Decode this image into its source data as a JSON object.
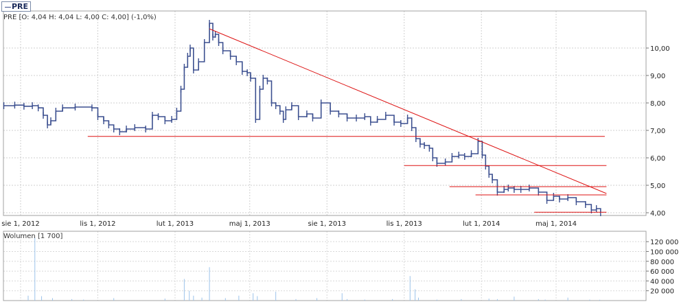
{
  "legend": {
    "symbol": "PRE"
  },
  "ohlc_text": "PRE [O: 4,04  H: 4,04  L: 4,00  C: 4,00] (-1,0%)",
  "volume_label": "Wolumen [1 700]",
  "colors": {
    "price": "#3b4f8f",
    "trend": "#dd1111",
    "volume": "#9cc3ea",
    "grid": "#cfcfcf",
    "grid_vol": "#d8d8d8"
  },
  "chart_data": [
    {
      "type": "line",
      "title": "PRE",
      "x_ticks": [
        "sie 1, 2012",
        "lis 1, 2012",
        "lut 1, 2013",
        "maj 1, 2013",
        "sie 1, 2013",
        "lis 1, 2013",
        "lut 1, 2014",
        "maj 1, 2014"
      ],
      "y_ticks": [
        "4,00",
        "5,00",
        "6,00",
        "7,00",
        "8,00",
        "9,00",
        "10,00"
      ],
      "ylim": [
        3.85,
        11.0
      ],
      "grid": true,
      "series": [
        {
          "x": [
            "2012-07-12",
            "2012-07-25",
            "2012-08-05",
            "2012-08-15",
            "2012-08-22",
            "2012-08-28",
            "2012-09-02",
            "2012-09-06",
            "2012-09-12",
            "2012-09-20",
            "2012-10-05",
            "2012-10-25",
            "2012-11-01",
            "2012-11-08",
            "2012-11-14",
            "2012-11-20",
            "2012-11-27",
            "2012-12-05",
            "2012-12-15",
            "2012-12-28",
            "2013-01-05",
            "2013-01-12",
            "2013-01-20",
            "2013-01-28",
            "2013-02-03",
            "2013-02-08",
            "2013-02-12",
            "2013-02-16",
            "2013-02-19",
            "2013-02-23",
            "2013-03-01",
            "2013-03-08",
            "2013-03-14",
            "2013-03-18",
            "2013-03-21",
            "2013-03-25",
            "2013-03-30",
            "2013-04-08",
            "2013-04-15",
            "2013-04-22",
            "2013-04-28",
            "2013-05-02",
            "2013-05-08",
            "2013-05-13",
            "2013-05-17",
            "2013-05-22",
            "2013-05-27",
            "2013-06-01",
            "2013-06-06",
            "2013-06-10",
            "2013-06-13",
            "2013-06-20",
            "2013-06-28",
            "2013-07-08",
            "2013-07-15",
            "2013-07-25",
            "2013-08-05",
            "2013-08-15",
            "2013-08-25",
            "2013-09-05",
            "2013-09-15",
            "2013-09-22",
            "2013-09-30",
            "2013-10-10",
            "2013-10-20",
            "2013-10-28",
            "2013-11-05",
            "2013-11-10",
            "2013-11-15",
            "2013-11-20",
            "2013-11-25",
            "2013-12-01",
            "2013-12-05",
            "2013-12-10",
            "2013-12-20",
            "2013-12-28",
            "2014-01-05",
            "2014-01-12",
            "2014-01-20",
            "2014-01-28",
            "2014-02-02",
            "2014-02-06",
            "2014-02-10",
            "2014-02-14",
            "2014-02-20",
            "2014-02-28",
            "2014-03-05",
            "2014-03-12",
            "2014-03-20",
            "2014-03-30",
            "2014-04-10",
            "2014-04-20",
            "2014-04-28",
            "2014-05-05",
            "2014-05-15",
            "2014-05-25",
            "2014-06-05",
            "2014-06-12",
            "2014-06-18",
            "2014-06-23"
          ],
          "values": [
            7.9,
            7.92,
            7.88,
            7.9,
            7.82,
            7.55,
            7.2,
            7.35,
            7.7,
            7.82,
            7.85,
            7.82,
            7.5,
            7.35,
            7.2,
            7.05,
            6.95,
            7.05,
            7.1,
            7.05,
            7.55,
            7.5,
            7.35,
            7.4,
            7.7,
            8.5,
            9.3,
            9.7,
            10.0,
            9.2,
            9.5,
            10.2,
            10.9,
            10.4,
            10.5,
            10.2,
            9.9,
            9.7,
            9.5,
            9.15,
            9.1,
            8.9,
            7.4,
            8.5,
            8.9,
            8.8,
            8.0,
            7.9,
            7.7,
            7.4,
            7.75,
            7.9,
            7.5,
            7.6,
            7.45,
            8.0,
            7.7,
            7.6,
            7.45,
            7.45,
            7.5,
            7.3,
            7.4,
            7.55,
            7.3,
            7.25,
            7.45,
            7.1,
            6.7,
            6.5,
            6.45,
            6.35,
            6.0,
            5.8,
            5.85,
            6.05,
            6.1,
            6.05,
            6.15,
            6.6,
            6.1,
            5.7,
            5.4,
            5.2,
            4.75,
            4.85,
            4.9,
            4.85,
            4.85,
            4.9,
            4.75,
            4.45,
            4.6,
            4.5,
            4.55,
            4.4,
            4.3,
            4.1,
            4.15,
            4.0
          ]
        }
      ],
      "trendlines": [
        {
          "from": [
            "2013-03-14",
            10.7
          ],
          "to": [
            "2014-06-30",
            4.7
          ]
        }
      ],
      "support_lines": [
        {
          "from": "2012-10-20",
          "to": "2014-06-28",
          "value": 6.78
        },
        {
          "from": "2013-11-01",
          "to": "2014-06-30",
          "value": 5.72
        },
        {
          "from": "2013-12-25",
          "to": "2014-06-30",
          "value": 4.95
        },
        {
          "from": "2014-01-25",
          "to": "2014-06-30",
          "value": 4.65
        },
        {
          "from": "2014-04-05",
          "to": "2014-06-30",
          "value": 4.02
        }
      ]
    },
    {
      "type": "bar",
      "title": "Wolumen [1 700]",
      "y_ticks": [
        "20 000",
        "40 000",
        "60 000",
        "80 000",
        "100 000",
        "120 000"
      ],
      "ylim": [
        0,
        130000
      ],
      "grid": true,
      "series": [
        {
          "x": [
            "2012-08-10",
            "2012-08-18",
            "2012-08-26",
            "2012-09-08",
            "2012-10-01",
            "2012-10-15",
            "2012-11-20",
            "2013-01-20",
            "2013-02-12",
            "2013-02-18",
            "2013-02-23",
            "2013-03-05",
            "2013-03-14",
            "2013-04-02",
            "2013-04-18",
            "2013-05-05",
            "2013-05-10",
            "2013-06-01",
            "2013-06-25",
            "2013-07-20",
            "2013-08-19",
            "2013-08-25",
            "2013-09-15",
            "2013-10-18",
            "2013-11-08",
            "2013-11-14",
            "2013-11-18",
            "2013-12-10",
            "2014-01-08",
            "2014-02-10",
            "2014-02-20",
            "2014-03-12",
            "2014-04-10",
            "2014-04-18",
            "2014-05-15",
            "2014-06-10",
            "2014-06-22"
          ],
          "values": [
            10000,
            128000,
            9000,
            5000,
            3000,
            2000,
            5000,
            4000,
            44000,
            20000,
            10000,
            6000,
            68000,
            5000,
            10000,
            15000,
            9000,
            18000,
            3000,
            5000,
            15000,
            3000,
            2000,
            3000,
            50000,
            23000,
            6000,
            2000,
            3000,
            4000,
            3000,
            8000,
            3000,
            2000,
            6000,
            2000,
            1700
          ]
        }
      ]
    }
  ]
}
